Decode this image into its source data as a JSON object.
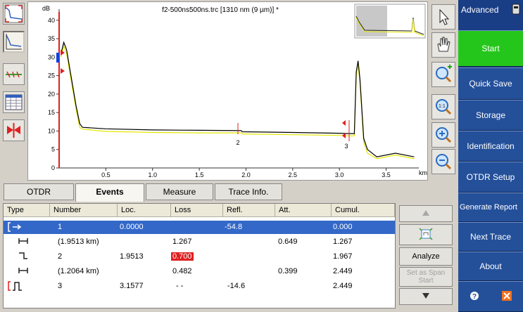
{
  "chart": {
    "title": "f2-500ns500ns.trc [1310 nm (9 µm)] *",
    "y_unit": "dB",
    "x_unit": "km",
    "y_ticks": [
      "40",
      "35",
      "30",
      "25",
      "20",
      "15",
      "10",
      "5",
      "0"
    ],
    "x_ticks": [
      "0.5",
      "1.0",
      "1.5",
      "2.0",
      "2.5",
      "3.0",
      "3.5"
    ],
    "event_markers": [
      "2",
      "3"
    ]
  },
  "chart_data": {
    "type": "line",
    "title": "f2-500ns500ns.trc [1310 nm (9 µm)] *",
    "xlabel": "km",
    "ylabel": "dB",
    "xlim": [
      0,
      3.85
    ],
    "ylim": [
      0,
      43
    ],
    "series": [
      {
        "color": "#000000",
        "x": [
          0.02,
          0.05,
          0.08,
          0.12,
          0.18,
          0.22,
          0.25,
          0.5,
          1.0,
          1.5,
          1.95,
          1.96,
          2.5,
          3.0,
          3.1,
          3.16,
          3.18,
          3.2,
          3.22,
          3.26,
          3.3,
          3.4,
          3.6,
          3.8
        ],
        "y": [
          31,
          34,
          32,
          26,
          17,
          12,
          11,
          10.6,
          10.3,
          10.2,
          10.1,
          9.8,
          9.6,
          9.4,
          9.3,
          9.3,
          26,
          29,
          24,
          8,
          5,
          3,
          4,
          3
        ]
      },
      {
        "color": "#e6e600",
        "x": [
          0.02,
          0.05,
          0.08,
          0.12,
          0.18,
          0.22,
          0.25,
          0.5,
          1.0,
          1.5,
          1.95,
          1.96,
          2.5,
          3.0,
          3.1,
          3.16,
          3.18,
          3.2,
          3.22,
          3.26,
          3.3,
          3.4,
          3.6,
          3.8
        ],
        "y": [
          30,
          33,
          31,
          25,
          16,
          11,
          10.5,
          9.9,
          9.6,
          9.5,
          9.5,
          9.2,
          9.0,
          8.8,
          8.7,
          8.7,
          25,
          28,
          23,
          7,
          4,
          2.5,
          3.5,
          2.5
        ]
      }
    ]
  },
  "tabs": [
    "OTDR",
    "Events",
    "Measure",
    "Trace Info."
  ],
  "table": {
    "headers": [
      "Type",
      "Number",
      "Loc.",
      "Loss",
      "Refl.",
      "Att.",
      "Cumul."
    ],
    "rows": [
      {
        "type_icon": "launch-level-icon",
        "number": "1",
        "loc": "0.0000",
        "loss": "",
        "refl": "-54.8",
        "att": "",
        "cumul": "0.000"
      },
      {
        "type_icon": "span-icon",
        "number": "(1.9513 km)",
        "loc": "",
        "loss": "1.267",
        "refl": "",
        "att": "0.649",
        "cumul": "1.267"
      },
      {
        "type_icon": "non-reflective-icon",
        "number": "2",
        "loc": "1.9513",
        "loss": "0.700",
        "refl": "",
        "att": "",
        "cumul": "1.967"
      },
      {
        "type_icon": "span-icon",
        "number": "(1.2064 km)",
        "loc": "",
        "loss": "0.482",
        "refl": "",
        "att": "0.399",
        "cumul": "2.449"
      },
      {
        "type_icon": "reflective-end-icon",
        "number": "3",
        "loc": "3.1577",
        "loss": "- -",
        "refl": "-14.6",
        "att": "",
        "cumul": "2.449"
      }
    ]
  },
  "side_buttons": {
    "analyze": "Analyze",
    "set_span_start": "Set as Span Start"
  },
  "menu": {
    "title": "Advanced",
    "items": [
      "Start",
      "Quick Save",
      "Storage",
      "Identification",
      "OTDR Setup",
      "Generate Report",
      "Next Trace",
      "About"
    ]
  },
  "colors": {
    "menu_bg": "#24509a",
    "start": "#25c61b",
    "selected_row": "#3368c8",
    "bad_loss": "#e02020"
  }
}
